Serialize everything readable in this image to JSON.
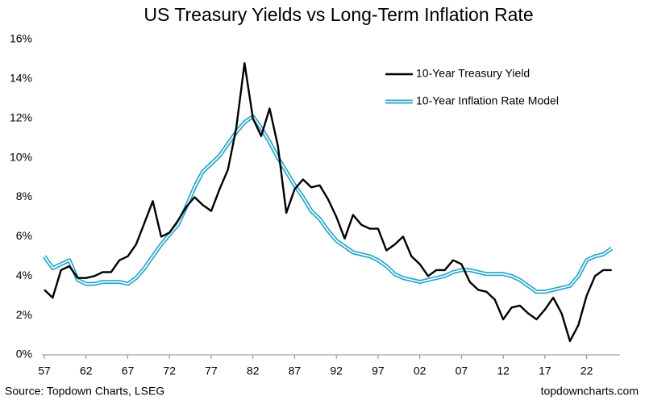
{
  "chart_data": {
    "type": "line",
    "title": "US Treasury Yields vs Long-Term Inflation Rate",
    "source": "Source: Topdown Charts, LSEG",
    "watermark": "topdowncharts.com",
    "x": [
      1957,
      1958,
      1959,
      1960,
      1961,
      1962,
      1963,
      1964,
      1965,
      1966,
      1967,
      1968,
      1969,
      1970,
      1971,
      1972,
      1973,
      1974,
      1975,
      1976,
      1977,
      1978,
      1979,
      1980,
      1981,
      1982,
      1983,
      1984,
      1985,
      1986,
      1987,
      1988,
      1989,
      1990,
      1991,
      1992,
      1993,
      1994,
      1995,
      1996,
      1997,
      1998,
      1999,
      2000,
      2001,
      2002,
      2003,
      2004,
      2005,
      2006,
      2007,
      2008,
      2009,
      2010,
      2011,
      2012,
      2013,
      2014,
      2015,
      2016,
      2017,
      2018,
      2019,
      2020,
      2021,
      2022,
      2023,
      2024,
      2025
    ],
    "series": [
      {
        "name": "10-Year Treasury Yield",
        "color": "#000000",
        "values": [
          3.3,
          2.9,
          4.3,
          4.5,
          3.9,
          3.9,
          4.0,
          4.2,
          4.2,
          4.8,
          5.0,
          5.6,
          6.7,
          7.8,
          6.0,
          6.2,
          6.8,
          7.5,
          8.0,
          7.6,
          7.3,
          8.4,
          9.4,
          11.5,
          14.8,
          12.0,
          11.1,
          12.5,
          10.6,
          7.2,
          8.4,
          8.9,
          8.5,
          8.6,
          7.9,
          7.0,
          5.9,
          7.1,
          6.6,
          6.4,
          6.4,
          5.3,
          5.6,
          6.0,
          5.0,
          4.6,
          4.0,
          4.3,
          4.3,
          4.8,
          4.6,
          3.7,
          3.3,
          3.2,
          2.8,
          1.8,
          2.4,
          2.5,
          2.1,
          1.8,
          2.3,
          2.9,
          2.1,
          0.7,
          1.5,
          3.0,
          4.0,
          4.3,
          4.3
        ]
      },
      {
        "name": "10-Year Inflation Rate Model",
        "color": "#2aa7c9",
        "values": [
          5.0,
          4.4,
          4.6,
          4.8,
          3.8,
          3.6,
          3.6,
          3.7,
          3.7,
          3.7,
          3.6,
          3.9,
          4.4,
          5.0,
          5.6,
          6.1,
          6.6,
          7.5,
          8.5,
          9.3,
          9.7,
          10.1,
          10.7,
          11.3,
          11.8,
          12.1,
          11.5,
          10.8,
          10.0,
          9.3,
          8.6,
          8.0,
          7.3,
          6.9,
          6.3,
          5.8,
          5.5,
          5.2,
          5.1,
          5.0,
          4.8,
          4.5,
          4.1,
          3.9,
          3.8,
          3.7,
          3.8,
          3.9,
          4.0,
          4.2,
          4.3,
          4.3,
          4.2,
          4.1,
          4.1,
          4.1,
          4.0,
          3.8,
          3.5,
          3.2,
          3.2,
          3.3,
          3.4,
          3.5,
          4.0,
          4.8,
          5.0,
          5.1,
          5.4
        ]
      }
    ],
    "xlim": [
      1957,
      2026
    ],
    "xticks": [
      {
        "value": 1957,
        "label": "57"
      },
      {
        "value": 1962,
        "label": "62"
      },
      {
        "value": 1967,
        "label": "67"
      },
      {
        "value": 1972,
        "label": "72"
      },
      {
        "value": 1977,
        "label": "77"
      },
      {
        "value": 1982,
        "label": "82"
      },
      {
        "value": 1987,
        "label": "87"
      },
      {
        "value": 1992,
        "label": "92"
      },
      {
        "value": 1997,
        "label": "97"
      },
      {
        "value": 2002,
        "label": "02"
      },
      {
        "value": 2007,
        "label": "07"
      },
      {
        "value": 2012,
        "label": "12"
      },
      {
        "value": 2017,
        "label": "17"
      },
      {
        "value": 2022,
        "label": "22"
      }
    ],
    "ylim": [
      0,
      16
    ],
    "yticks": [
      {
        "value": 0,
        "label": "0%"
      },
      {
        "value": 2,
        "label": "2%"
      },
      {
        "value": 4,
        "label": "4%"
      },
      {
        "value": 6,
        "label": "6%"
      },
      {
        "value": 8,
        "label": "8%"
      },
      {
        "value": 10,
        "label": "10%"
      },
      {
        "value": 12,
        "label": "12%"
      },
      {
        "value": 14,
        "label": "14%"
      },
      {
        "value": 16,
        "label": "16%"
      }
    ],
    "grid": false,
    "legend": "upper right"
  }
}
